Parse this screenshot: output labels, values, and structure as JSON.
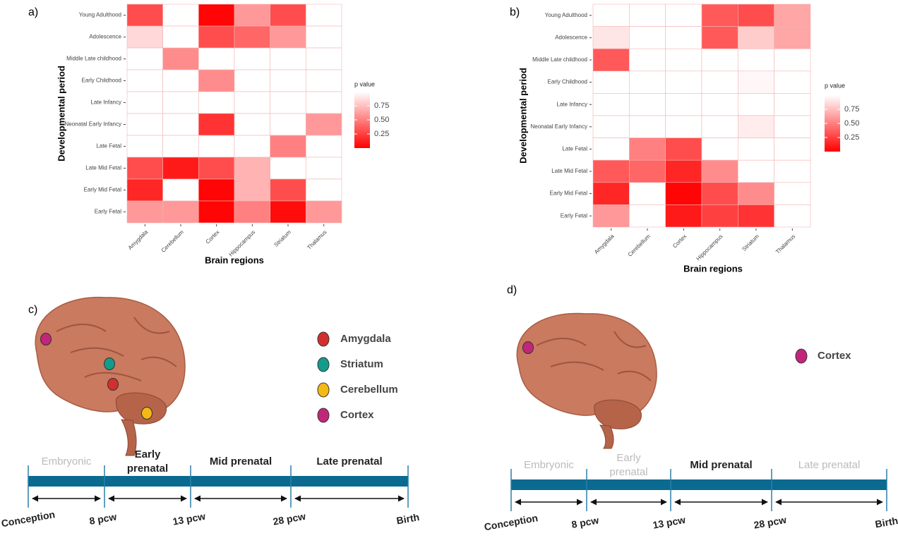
{
  "chart_data": [
    {
      "type": "heatmap",
      "panel_label": "a)",
      "x_label": "Brain regions",
      "y_label": "Developmental period",
      "x_categories": [
        "Amygdala",
        "Cerebellum",
        "Cortex",
        "Hippocampus",
        "Striatum",
        "Thalamus"
      ],
      "y_categories": [
        "Young Adulthood",
        "Adolescence",
        "Middle Late childhood",
        "Early Childhood",
        "Late Infancy",
        "Neonatal Early Infancy",
        "Late Fetal",
        "Late Mid Fetal",
        "Early Mid Fetal",
        "Early Fetal"
      ],
      "values": [
        [
          0.3,
          1,
          0.02,
          0.6,
          0.3,
          1
        ],
        [
          0.85,
          1,
          0.3,
          0.4,
          0.6,
          1
        ],
        [
          1,
          0.55,
          1,
          1,
          1,
          1
        ],
        [
          1,
          1,
          0.55,
          1,
          1,
          1
        ],
        [
          1,
          1,
          1,
          1,
          1,
          1
        ],
        [
          1,
          1,
          0.2,
          1,
          1,
          0.6
        ],
        [
          1,
          1,
          1,
          1,
          0.5,
          1
        ],
        [
          0.3,
          0.1,
          0.3,
          0.7,
          1,
          1
        ],
        [
          0.15,
          1,
          0.02,
          0.7,
          0.3,
          1
        ],
        [
          0.6,
          0.6,
          0.02,
          0.5,
          0.05,
          0.6
        ]
      ],
      "legend_title": "p value",
      "clim": [
        0,
        1
      ],
      "cticks": [
        0.25,
        {
          "value": 0.5,
          "label": "0.50"
        },
        0.75
      ],
      "low_color": "#ff0000",
      "high_color": "#ffffff"
    },
    {
      "type": "heatmap",
      "panel_label": "b)",
      "x_label": "Brain regions",
      "y_label": "Developmental period",
      "x_categories": [
        "Amygdala",
        "Cerebellum",
        "Cortex",
        "Hippocampus",
        "Striatum",
        "Thalamus"
      ],
      "y_categories": [
        "Young Adulthood",
        "Adolescence",
        "Middle Late childhood",
        "Early Childhood",
        "Late Infancy",
        "Neonatal Early Infancy",
        "Late Fetal",
        "Late Mid Fetal",
        "Early Mid Fetal",
        "Early Fetal"
      ],
      "values": [
        [
          1,
          1,
          1,
          0.35,
          0.3,
          0.65
        ],
        [
          0.9,
          1,
          1,
          0.35,
          0.8,
          0.65
        ],
        [
          0.35,
          1,
          1,
          1,
          1,
          1
        ],
        [
          1,
          1,
          1,
          1,
          0.97,
          1
        ],
        [
          1,
          1,
          1,
          1,
          1,
          1
        ],
        [
          1,
          1,
          1,
          1,
          0.93,
          1
        ],
        [
          1,
          0.5,
          0.3,
          1,
          1,
          1
        ],
        [
          0.35,
          0.4,
          0.15,
          0.55,
          1,
          1
        ],
        [
          0.15,
          1,
          0.02,
          0.3,
          0.55,
          1
        ],
        [
          0.6,
          1,
          0.1,
          0.25,
          0.2,
          1
        ]
      ],
      "legend_title": "p value",
      "clim": [
        0,
        1
      ],
      "cticks": [
        0.25,
        {
          "value": 0.5,
          "label": "0.50"
        },
        0.75
      ],
      "low_color": "#ff0000",
      "high_color": "#ffffff"
    }
  ],
  "panels": [
    {
      "label": "c)",
      "legend": [
        {
          "name": "Amygdala",
          "color": "#d32f2f"
        },
        {
          "name": "Striatum",
          "color": "#139c8c"
        },
        {
          "name": "Cerebellum",
          "color": "#f5b915"
        },
        {
          "name": "Cortex",
          "color": "#c2267a"
        }
      ],
      "stages": [
        {
          "name": "Embryonic",
          "highlighted": false
        },
        {
          "name": "Early prenatal",
          "highlighted": true
        },
        {
          "name": "Mid prenatal",
          "highlighted": true
        },
        {
          "name": "Late prenatal",
          "highlighted": true
        }
      ],
      "milestones": [
        "Conception",
        "8 pcw",
        "13 pcw",
        "28 pcw",
        "Birth"
      ]
    },
    {
      "label": "d)",
      "legend": [
        {
          "name": "Cortex",
          "color": "#c2267a"
        }
      ],
      "stages": [
        {
          "name": "Embryonic",
          "highlighted": false
        },
        {
          "name": "Early prenatal",
          "highlighted": false
        },
        {
          "name": "Mid prenatal",
          "highlighted": true
        },
        {
          "name": "Late prenatal",
          "highlighted": false
        }
      ],
      "milestones": [
        "Conception",
        "8 pcw",
        "13 pcw",
        "28 pcw",
        "Birth"
      ]
    }
  ]
}
